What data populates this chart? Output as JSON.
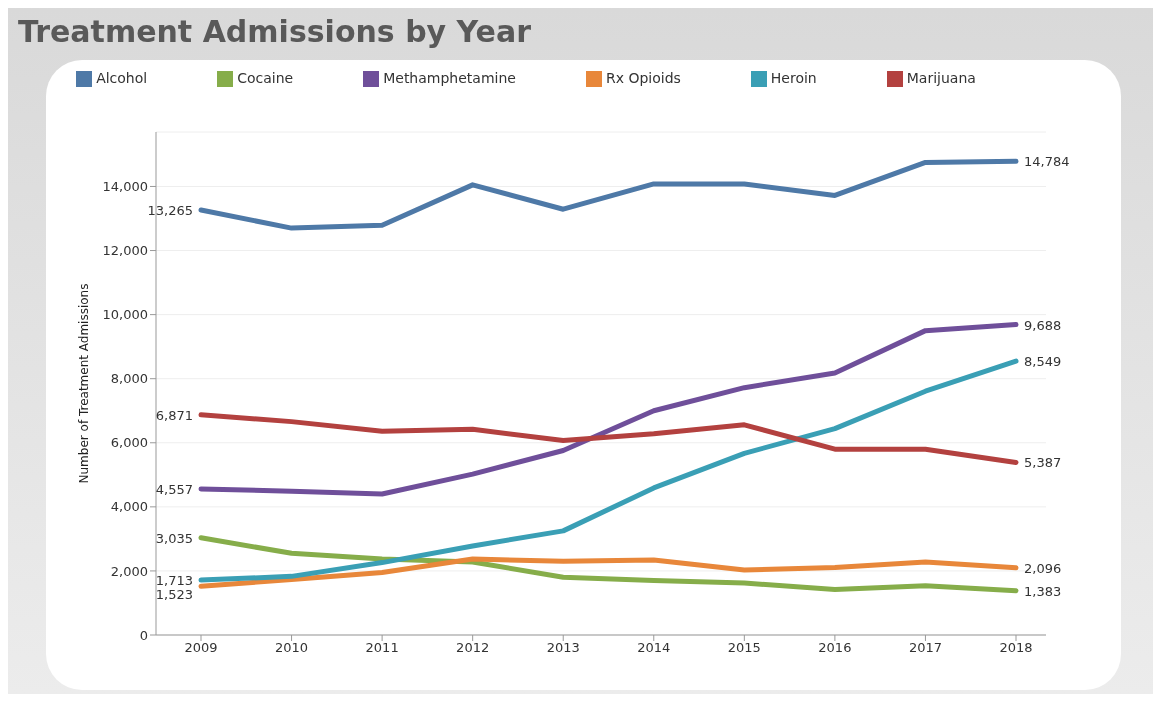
{
  "chart_data": {
    "type": "line",
    "title": "Treatment Admissions by Year",
    "ylabel": "Number of Treatment Admissions",
    "categories": [
      "2009",
      "2010",
      "2011",
      "2012",
      "2013",
      "2014",
      "2015",
      "2016",
      "2017",
      "2018"
    ],
    "series": [
      {
        "name": "Alcohol",
        "color": "#4e79a7",
        "values": [
          13265,
          12700,
          12790,
          14050,
          13290,
          14080,
          14080,
          13720,
          14750,
          14784
        ],
        "value_labels": [
          "13,265",
          null,
          null,
          null,
          null,
          null,
          null,
          null,
          null,
          "14,784"
        ]
      },
      {
        "name": "Cocaine",
        "color": "#86ad4a",
        "values": [
          3035,
          2550,
          2370,
          2280,
          1800,
          1700,
          1620,
          1420,
          1540,
          1383
        ],
        "value_labels": [
          "3,035",
          null,
          null,
          null,
          null,
          null,
          null,
          null,
          null,
          "1,383"
        ]
      },
      {
        "name": "Methamphetamine",
        "color": "#6f4f9a",
        "values": [
          4557,
          4490,
          4400,
          5020,
          5760,
          7000,
          7720,
          8180,
          9500,
          9688
        ],
        "value_labels": [
          "4,557",
          null,
          null,
          null,
          null,
          null,
          null,
          null,
          null,
          "9,688"
        ]
      },
      {
        "name": "Rx Opioids",
        "color": "#e8873a",
        "values": [
          1523,
          1730,
          1950,
          2370,
          2300,
          2340,
          2030,
          2110,
          2280,
          2096
        ],
        "value_labels": [
          "1,523",
          null,
          null,
          null,
          null,
          null,
          null,
          null,
          null,
          "2,096"
        ]
      },
      {
        "name": "Heroin",
        "color": "#3a9fb5",
        "values": [
          1713,
          1830,
          2260,
          2780,
          3250,
          4590,
          5670,
          6440,
          7610,
          8549
        ],
        "value_labels": [
          "1,713",
          null,
          null,
          null,
          null,
          null,
          null,
          null,
          null,
          "8,549"
        ]
      },
      {
        "name": "Marijuana",
        "color": "#b3413f",
        "values": [
          6871,
          6660,
          6360,
          6420,
          6070,
          6280,
          6560,
          5800,
          5800,
          5387
        ],
        "value_labels": [
          "6,871",
          null,
          null,
          null,
          null,
          null,
          null,
          null,
          null,
          "5,387"
        ]
      }
    ],
    "ylim": [
      0,
      15700
    ],
    "yticks": [
      {
        "value": 0,
        "label": "0"
      },
      {
        "value": 2000,
        "label": "2,000"
      },
      {
        "value": 4000,
        "label": "4,000"
      },
      {
        "value": 6000,
        "label": "6,000"
      },
      {
        "value": 8000,
        "label": "8,000"
      },
      {
        "value": 10000,
        "label": "10,000"
      },
      {
        "value": 12000,
        "label": "12,000"
      },
      {
        "value": 14000,
        "label": "14,000"
      }
    ],
    "grid": "y",
    "legend": "top",
    "marker": "none",
    "line_style": "solid"
  }
}
